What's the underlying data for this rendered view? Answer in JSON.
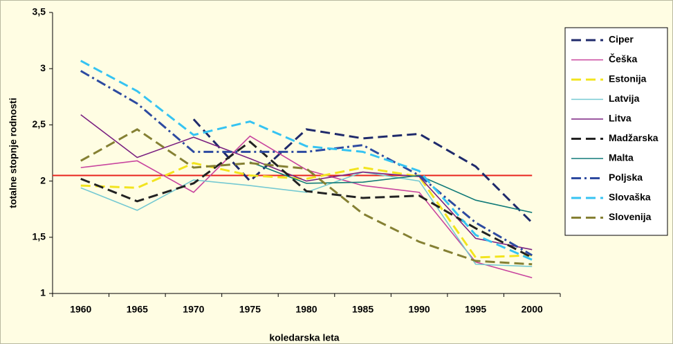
{
  "chart_data": {
    "type": "line",
    "y_axis_label": "totalne stopnje rodnosti",
    "x_axis_label": "koledarska leta",
    "categories": [
      "1960",
      "1965",
      "1970",
      "1975",
      "1980",
      "1985",
      "1990",
      "1995",
      "2000"
    ],
    "ylim": [
      1,
      3.5
    ],
    "yticks": [
      1,
      {
        "value": 1.5,
        "label": "1,5"
      },
      2,
      {
        "value": 2.5,
        "label": "2,5"
      },
      3,
      {
        "value": 3.5,
        "label": "3,5"
      }
    ],
    "reference_line": {
      "value": 2.05,
      "color": "#e8231c"
    },
    "legend": "right",
    "series": [
      {
        "name": "Ciper",
        "color": "#1f2a6b",
        "dash": "14 7",
        "values": [
          null,
          null,
          2.55,
          2.0,
          2.46,
          2.38,
          2.42,
          2.13,
          1.63
        ]
      },
      {
        "name": "Češka",
        "color": "#c8449e",
        "dash": "none",
        "values": [
          2.12,
          2.18,
          1.9,
          2.4,
          2.1,
          1.96,
          1.9,
          1.28,
          1.14
        ]
      },
      {
        "name": "Estonija",
        "color": "#f2e41e",
        "dash": "14 7",
        "values": [
          1.96,
          1.94,
          2.16,
          2.05,
          2.02,
          2.12,
          2.04,
          1.32,
          1.34
        ]
      },
      {
        "name": "Latvija",
        "color": "#74c9d2",
        "dash": "none",
        "values": [
          1.94,
          1.74,
          2.01,
          1.96,
          1.9,
          2.08,
          2.0,
          1.26,
          1.24
        ]
      },
      {
        "name": "Litva",
        "color": "#7a2080",
        "dash": "none",
        "values": [
          2.59,
          2.21,
          2.39,
          2.2,
          2.0,
          2.08,
          2.04,
          1.49,
          1.39
        ]
      },
      {
        "name": "Madžarska",
        "color": "#222222",
        "dash": "14 7",
        "values": [
          2.02,
          1.82,
          1.98,
          2.35,
          1.91,
          1.85,
          1.87,
          1.58,
          1.32
        ]
      },
      {
        "name": "Malta",
        "color": "#107a78",
        "dash": "none",
        "values": [
          null,
          null,
          null,
          2.17,
          1.98,
          1.99,
          2.05,
          1.83,
          1.72
        ]
      },
      {
        "name": "Poljska",
        "color": "#2d4aa0",
        "dash": "14 5 3 5",
        "values": [
          2.98,
          2.69,
          2.26,
          2.26,
          2.26,
          2.32,
          2.05,
          1.63,
          1.34
        ]
      },
      {
        "name": "Slovaška",
        "color": "#35c3f2",
        "dash": "14 7",
        "values": [
          3.07,
          2.8,
          2.41,
          2.53,
          2.31,
          2.26,
          2.09,
          1.52,
          1.3
        ]
      },
      {
        "name": "Slovenija",
        "color": "#858033",
        "dash": "14 7",
        "values": [
          2.18,
          2.46,
          2.12,
          2.16,
          2.11,
          1.71,
          1.46,
          1.29,
          1.26
        ]
      }
    ]
  }
}
